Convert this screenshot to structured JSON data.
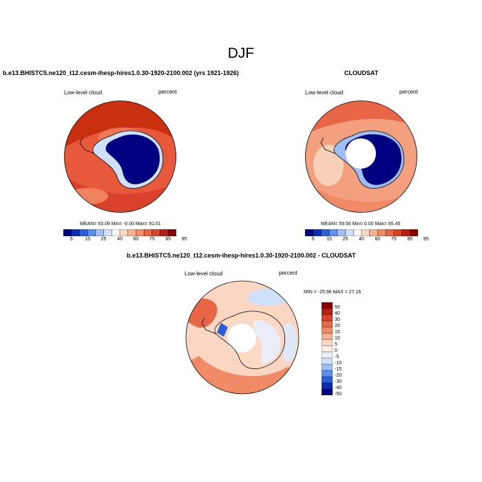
{
  "figure": {
    "season": "DJF",
    "panels": [
      {
        "title": "b.e13.BHISTC5.ne120_t12.cesm-ihesp-hires1.0.30-1920-2100.002 (yrs 1921-1926)",
        "left_label": "Low-level cloud",
        "right_label": "percent",
        "stats": "MEAN=  63.09  Min=  -0.00  Max=  91.01"
      },
      {
        "title": "CLOUDSAT",
        "left_label": "Low-level cloud",
        "right_label": "percent",
        "stats": "MEAN=  59.56  Min=    0.00  Max=  85.45"
      },
      {
        "title": "b.e13.BHISTC5.ne120_t12.cesm-ihesp-hires1.0.30-1920-2100.002 - CLOUDSAT",
        "left_label": "Low-level cloud",
        "right_label": "percent",
        "stats": "MIN = -25.96 MAX =  27.16"
      }
    ],
    "colorbar_abs": {
      "labels": [
        "5",
        "15",
        "25",
        "40",
        "60",
        "75",
        "85",
        "95"
      ],
      "colors": [
        "#000080",
        "#0c2db5",
        "#2a5fd9",
        "#5d8ff0",
        "#9dbff6",
        "#cfe0fa",
        "#f7f7f7",
        "#fcd9c4",
        "#f8b293",
        "#f18a66",
        "#e86645",
        "#d9412a",
        "#b81f12",
        "#8b0000"
      ]
    },
    "colorbar_diff": {
      "labels": [
        "50",
        "40",
        "30",
        "20",
        "15",
        "10",
        "5",
        "0",
        "-5",
        "-10",
        "-15",
        "-20",
        "-30",
        "-40",
        "-50"
      ],
      "colors": [
        "#8b0000",
        "#b81f12",
        "#d9412a",
        "#e86645",
        "#f18a66",
        "#f8b293",
        "#fcd9c4",
        "#fdeee4",
        "#e9eef8",
        "#cfe0fa",
        "#9dbff6",
        "#5d8ff0",
        "#2a5fd9",
        "#0c2db5",
        "#000080"
      ]
    }
  }
}
